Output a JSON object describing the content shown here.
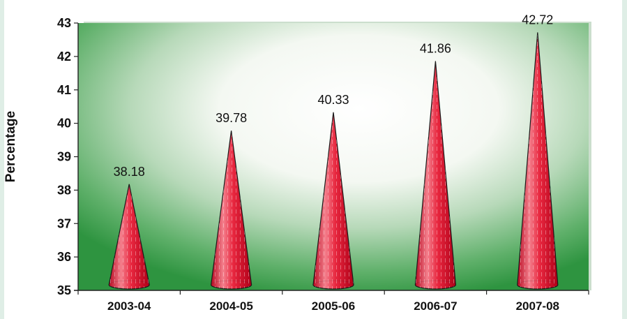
{
  "chart_data": {
    "type": "bar",
    "shape": "cone",
    "categories": [
      "2003-04",
      "2004-05",
      "2005-06",
      "2006-07",
      "2007-08"
    ],
    "values": [
      38.18,
      39.78,
      40.33,
      41.86,
      42.72
    ],
    "data_labels": [
      "38.18",
      "39.78",
      "40.33",
      "41.86",
      "42.72"
    ],
    "title": "",
    "xlabel": "",
    "ylabel": "Percentage",
    "ylim": [
      35,
      43
    ],
    "yticks": [
      35,
      36,
      37,
      38,
      39,
      40,
      41,
      42,
      43
    ],
    "grid": false,
    "legend": "none",
    "colors": {
      "cone_light": "#f07a86",
      "cone_mid": "#e0102a",
      "cone_dark": "#b00018",
      "background_green": "#2e9440",
      "page_background": "#dfeee6"
    }
  }
}
